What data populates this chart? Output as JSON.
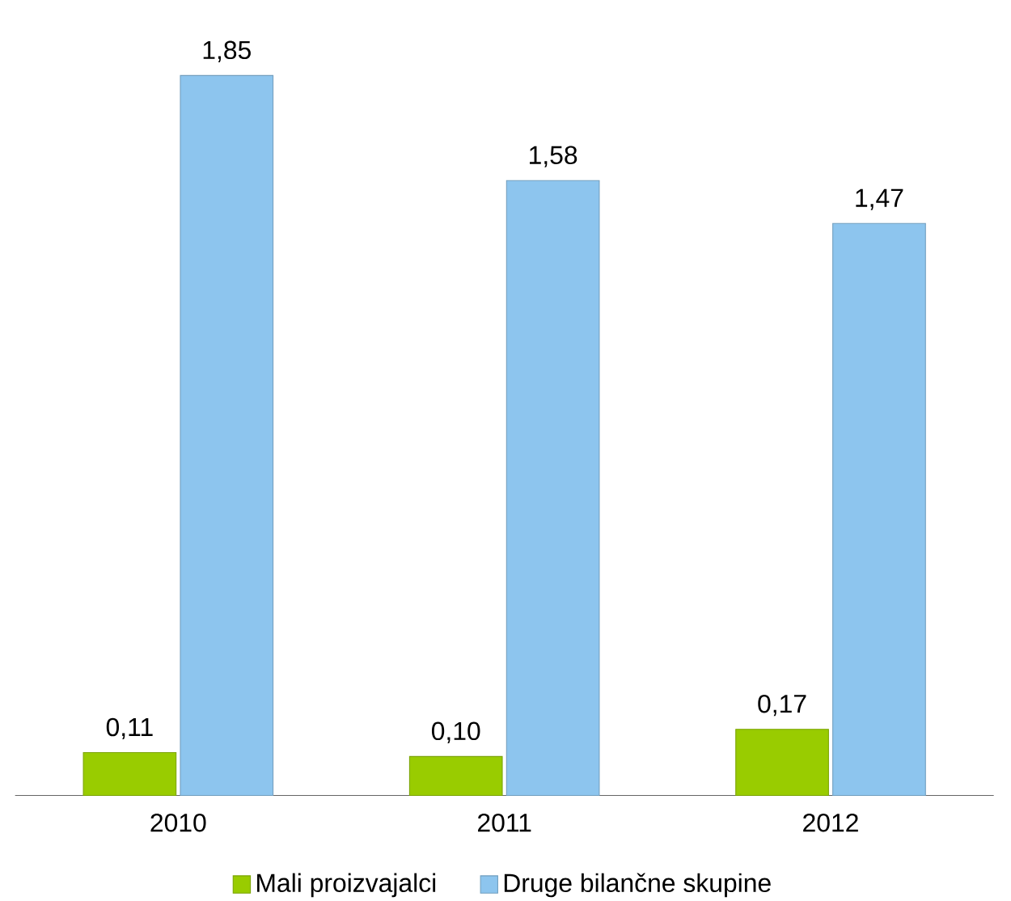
{
  "chart_data": {
    "type": "bar",
    "categories": [
      "2010",
      "2011",
      "2012"
    ],
    "series": [
      {
        "name": "Mali proizvajalci",
        "color": "#99cc00",
        "values": [
          0.11,
          0.1,
          0.17
        ],
        "value_labels": [
          "0,11",
          "0,10",
          "0,17"
        ]
      },
      {
        "name": "Druge bilančne skupine",
        "color": "#8dc5ee",
        "values": [
          1.85,
          1.58,
          1.47
        ],
        "value_labels": [
          "1,85",
          "1,58",
          "1,47"
        ]
      }
    ],
    "tick_labels": "x",
    "legend": "bottom"
  }
}
